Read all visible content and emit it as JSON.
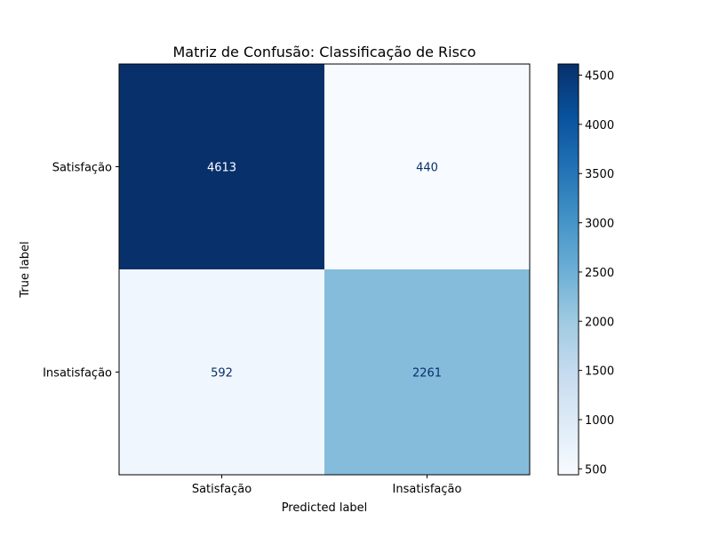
{
  "chart_data": {
    "type": "heatmap",
    "title": "Matriz de Confusão: Classificação de Risco",
    "xlabel": "Predicted label",
    "ylabel": "True label",
    "x_categories": [
      "Satisfação",
      "Insatisfação"
    ],
    "y_categories": [
      "Satisfação",
      "Insatisfação"
    ],
    "values": [
      [
        4613,
        440
      ],
      [
        592,
        2261
      ]
    ],
    "colormap": "Blues",
    "color_range": [
      440,
      4613
    ],
    "colorbar_ticks": [
      500,
      1000,
      1500,
      2000,
      2500,
      3000,
      3500,
      4000,
      4500
    ],
    "colorbar_tick_labels": [
      "500",
      "1000",
      "1500",
      "2000",
      "2500",
      "3000",
      "3500",
      "4000",
      "4500"
    ],
    "cell_labels": [
      [
        "4613",
        "440"
      ],
      [
        "592",
        "2261"
      ]
    ],
    "grid": false,
    "colorbar": "right"
  }
}
